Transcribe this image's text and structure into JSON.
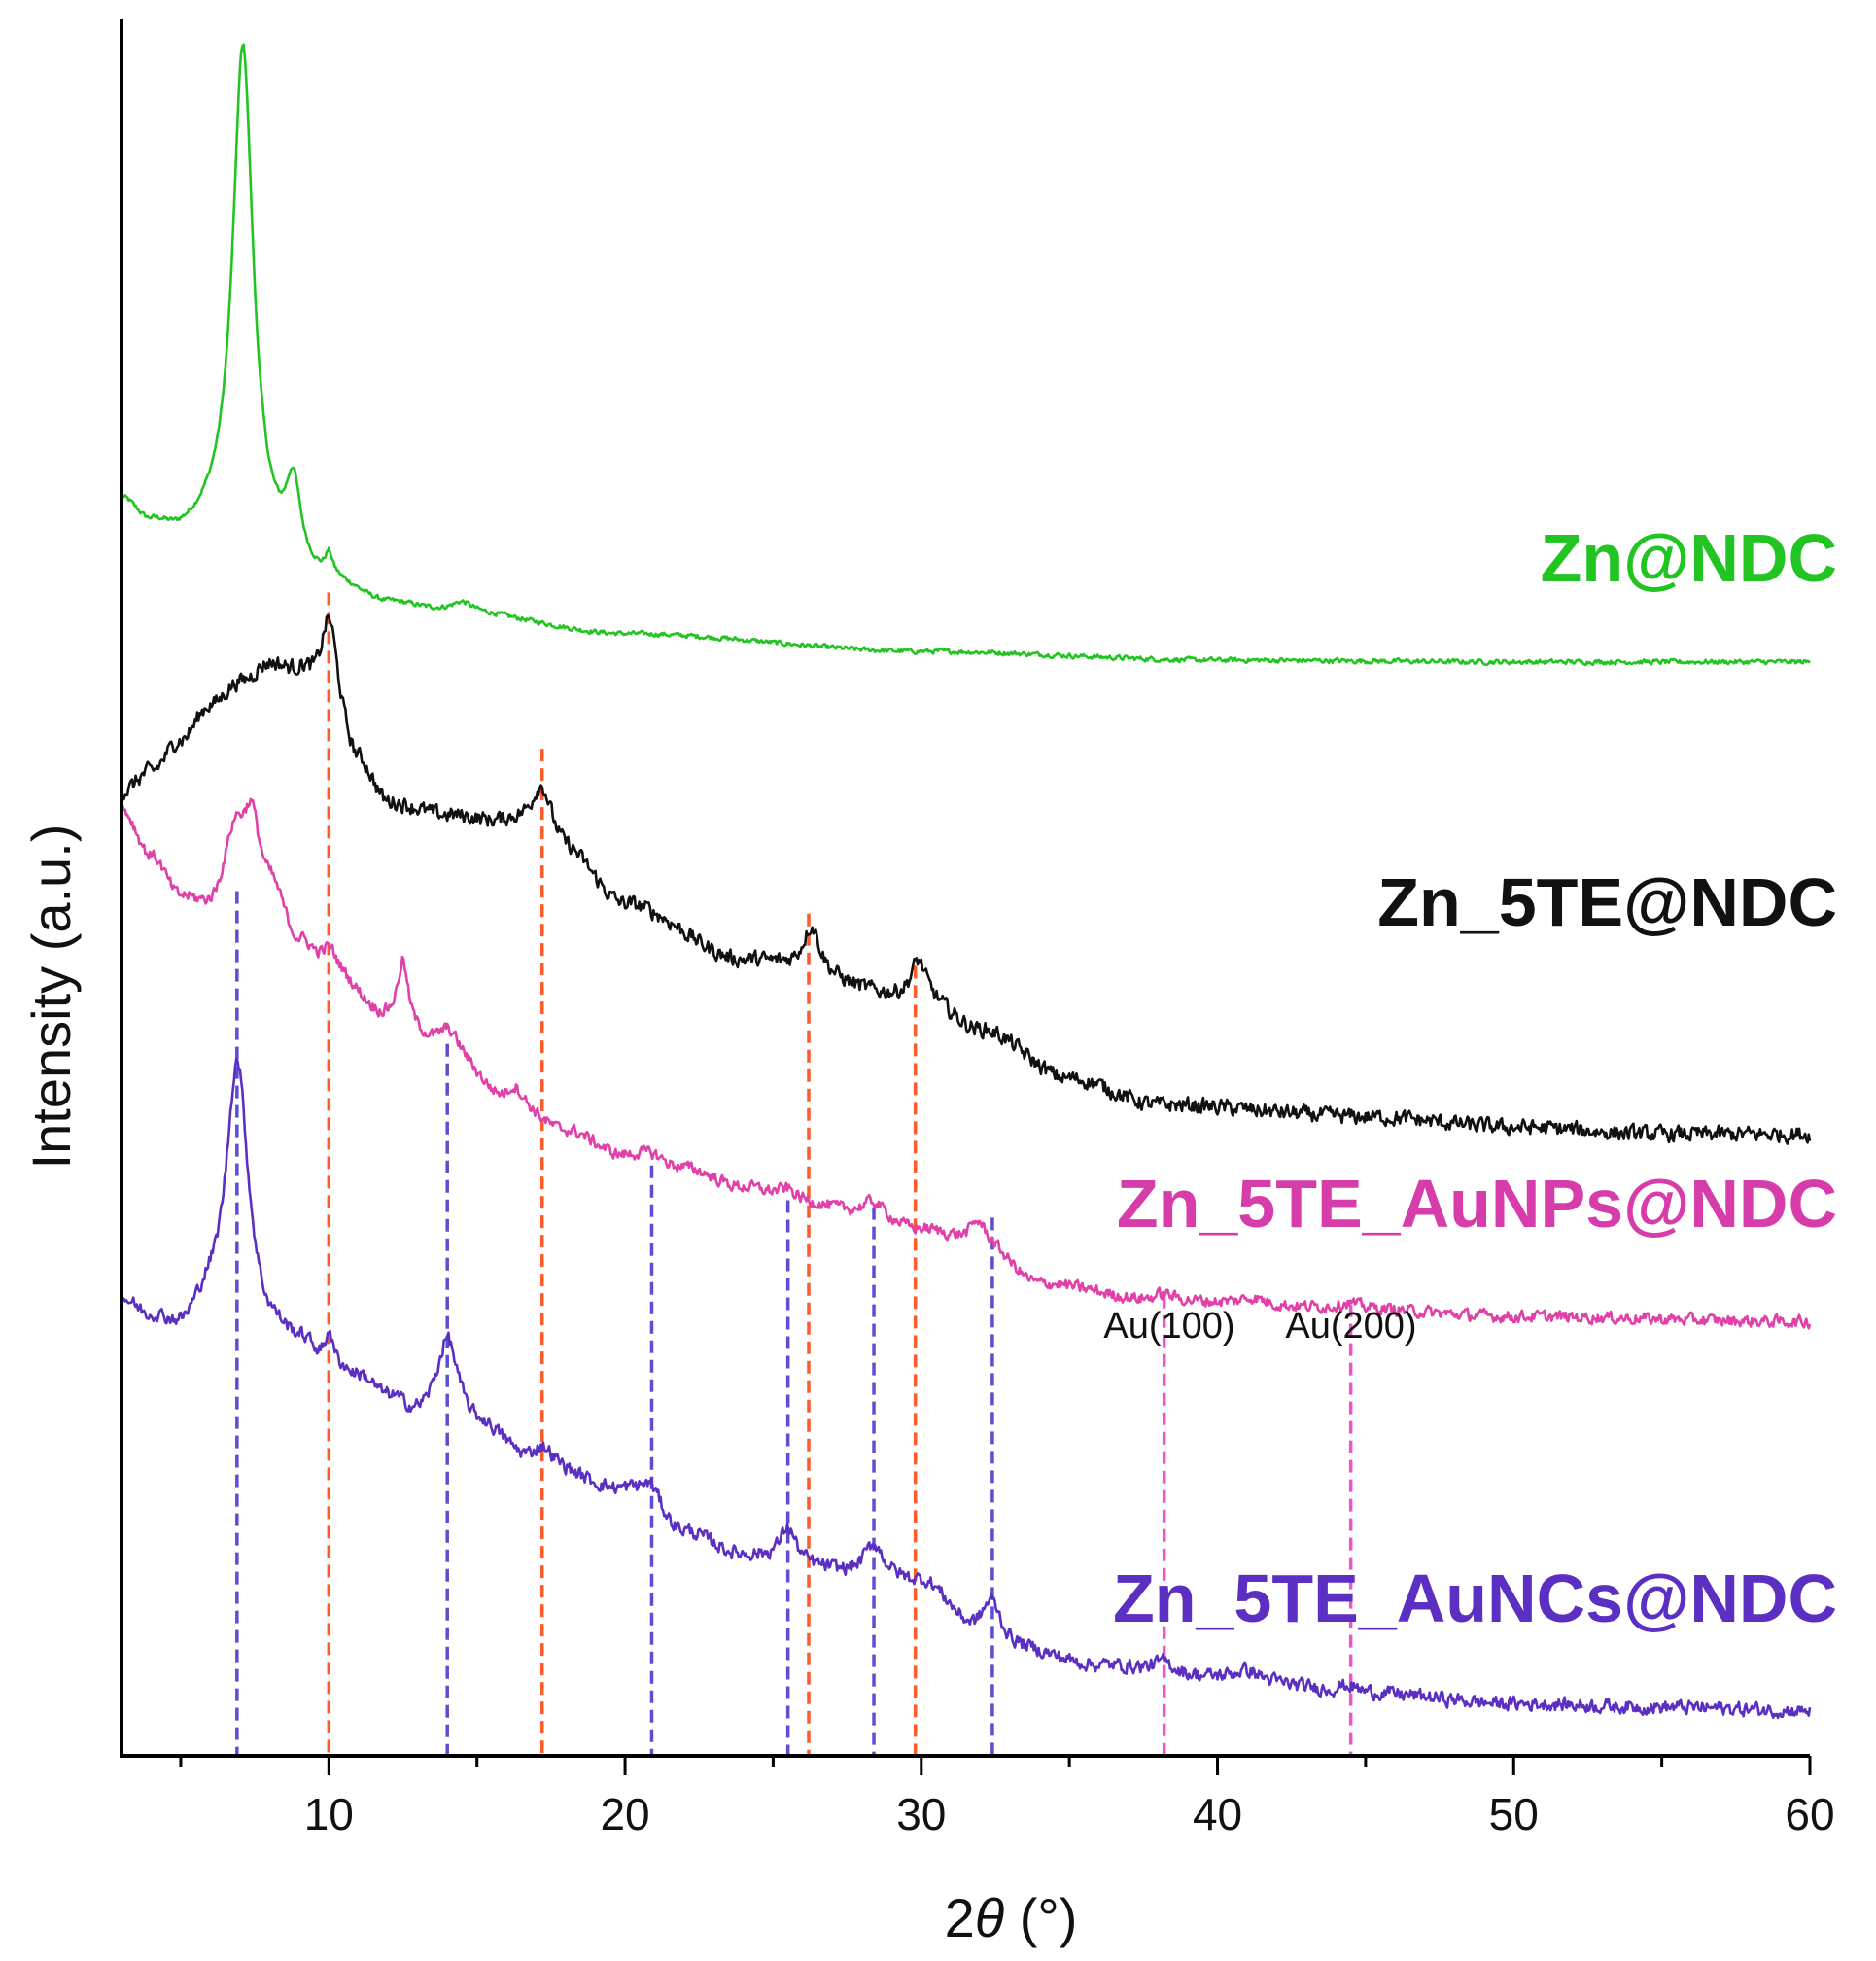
{
  "chart_data": {
    "type": "line",
    "xlabel_prefix": "2",
    "xlabel_symbol": "θ",
    "xlabel_suffix": " (°)",
    "ylabel": "Intensity (a.u.)",
    "xlim": [
      3,
      60
    ],
    "ylim": [
      0,
      1
    ],
    "x_ticks": [
      "10",
      "20",
      "30",
      "40",
      "50",
      "60"
    ],
    "x_tick_values": [
      10,
      20,
      30,
      40,
      50,
      60
    ],
    "series": [
      {
        "name": "Zn@NDC",
        "label": "Zn@NDC",
        "color": "#22c422",
        "baseline": [
          [
            3,
            0.722
          ],
          [
            4,
            0.708
          ],
          [
            5,
            0.702
          ],
          [
            6,
            0.705
          ],
          [
            10,
            0.674
          ],
          [
            12,
            0.663
          ],
          [
            14,
            0.659
          ],
          [
            20,
            0.646
          ],
          [
            30,
            0.636
          ],
          [
            40,
            0.631
          ],
          [
            50,
            0.63
          ],
          [
            60,
            0.63
          ]
        ],
        "peaks": [
          [
            7.1,
            0.285,
            0.42
          ],
          [
            8.8,
            0.045,
            0.3
          ],
          [
            10.0,
            0.012,
            0.15
          ],
          [
            14.5,
            0.005,
            0.4
          ]
        ],
        "noise": 0.0012
      },
      {
        "name": "Zn_5TE@NDC",
        "label": "Zn_5TE@NDC",
        "color": "#111111",
        "baseline": [
          [
            3,
            0.555
          ],
          [
            4,
            0.567
          ],
          [
            5,
            0.585
          ],
          [
            6,
            0.605
          ],
          [
            7,
            0.618
          ],
          [
            8,
            0.628
          ],
          [
            9,
            0.622
          ],
          [
            10,
            0.6
          ],
          [
            11,
            0.57
          ],
          [
            12,
            0.548
          ],
          [
            14,
            0.541
          ],
          [
            16,
            0.536
          ],
          [
            18,
            0.518
          ],
          [
            20,
            0.49
          ],
          [
            24,
            0.458
          ],
          [
            30,
            0.436
          ],
          [
            32,
            0.418
          ],
          [
            35,
            0.39
          ],
          [
            38,
            0.375
          ],
          [
            45,
            0.368
          ],
          [
            50,
            0.362
          ],
          [
            55,
            0.358
          ],
          [
            60,
            0.358
          ]
        ],
        "peaks": [
          [
            10.0,
            0.055,
            0.35
          ],
          [
            17.2,
            0.034,
            0.45
          ],
          [
            26.3,
            0.027,
            0.35
          ],
          [
            29.9,
            0.022,
            0.3
          ]
        ],
        "noise": 0.004
      },
      {
        "name": "Zn_5TE_AuNPs@NDC",
        "label": "Zn_5TE_AuNPs@NDC",
        "color": "#e040a8",
        "baseline": [
          [
            3,
            0.545
          ],
          [
            4,
            0.518
          ],
          [
            5,
            0.494
          ],
          [
            6,
            0.488
          ],
          [
            7,
            0.51
          ],
          [
            8,
            0.5
          ],
          [
            9,
            0.468
          ],
          [
            10,
            0.452
          ],
          [
            12,
            0.425
          ],
          [
            14,
            0.406
          ],
          [
            16,
            0.378
          ],
          [
            18,
            0.36
          ],
          [
            20,
            0.345
          ],
          [
            22,
            0.338
          ],
          [
            24,
            0.327
          ],
          [
            26,
            0.318
          ],
          [
            28,
            0.313
          ],
          [
            30,
            0.303
          ],
          [
            32,
            0.296
          ],
          [
            34,
            0.272
          ],
          [
            38,
            0.262
          ],
          [
            44,
            0.258
          ],
          [
            50,
            0.253
          ],
          [
            60,
            0.25
          ]
        ],
        "peaks": [
          [
            6.8,
            0.025,
            0.4
          ],
          [
            7.4,
            0.035,
            0.3
          ],
          [
            10.0,
            0.013,
            0.3
          ],
          [
            12.5,
            0.035,
            0.2
          ],
          [
            14.0,
            0.012,
            0.4
          ],
          [
            16.3,
            0.008,
            0.3
          ],
          [
            20.9,
            0.005,
            0.5
          ],
          [
            25.5,
            0.007,
            0.4
          ],
          [
            28.4,
            0.007,
            0.4
          ],
          [
            31.9,
            0.012,
            0.3
          ],
          [
            38.2,
            0.004,
            0.4
          ],
          [
            41.2,
            0.004,
            0.5
          ],
          [
            44.4,
            0.003,
            0.4
          ]
        ],
        "noise": 0.003
      },
      {
        "name": "Zn_5TE_AuNCs@NDC",
        "label": "Zn_5TE_AuNCs@NDC",
        "color": "#5b2fc2",
        "baseline": [
          [
            3,
            0.262
          ],
          [
            4,
            0.252
          ],
          [
            5,
            0.246
          ],
          [
            6,
            0.262
          ],
          [
            7,
            0.266
          ],
          [
            8,
            0.244
          ],
          [
            9,
            0.238
          ],
          [
            10,
            0.226
          ],
          [
            11,
            0.218
          ],
          [
            12,
            0.206
          ],
          [
            13,
            0.196
          ],
          [
            14,
            0.2
          ],
          [
            15,
            0.19
          ],
          [
            17,
            0.168
          ],
          [
            20,
            0.152
          ],
          [
            22,
            0.128
          ],
          [
            24,
            0.115
          ],
          [
            26,
            0.108
          ],
          [
            28,
            0.104
          ],
          [
            30,
            0.1
          ],
          [
            32,
            0.07
          ],
          [
            33,
            0.062
          ],
          [
            36,
            0.052
          ],
          [
            40,
            0.045
          ],
          [
            45,
            0.036
          ],
          [
            50,
            0.03
          ],
          [
            55,
            0.028
          ],
          [
            60,
            0.026
          ]
        ],
        "peaks": [
          [
            6.9,
            0.135,
            0.42
          ],
          [
            10.0,
            0.018,
            0.12
          ],
          [
            14.0,
            0.04,
            0.4
          ],
          [
            17.2,
            0.01,
            0.4
          ],
          [
            20.9,
            0.014,
            0.4
          ],
          [
            25.5,
            0.022,
            0.35
          ],
          [
            28.4,
            0.018,
            0.4
          ],
          [
            32.4,
            0.022,
            0.4
          ],
          [
            38.2,
            0.006,
            0.4
          ],
          [
            41.0,
            0.005,
            0.5
          ],
          [
            44.4,
            0.004,
            0.4
          ]
        ],
        "noise": 0.0035
      }
    ],
    "reference_lines": [
      {
        "x": 6.9,
        "y_top": 0.498,
        "color": "#5b4dd6"
      },
      {
        "x": 10.0,
        "y_top": 0.67,
        "color": "#ff5a2a"
      },
      {
        "x": 14.0,
        "y_top": 0.41,
        "color": "#5b4dd6"
      },
      {
        "x": 17.2,
        "y_top": 0.58,
        "color": "#ff5a2a"
      },
      {
        "x": 20.9,
        "y_top": 0.34,
        "color": "#5b4dd6"
      },
      {
        "x": 25.5,
        "y_top": 0.32,
        "color": "#5b4dd6"
      },
      {
        "x": 26.2,
        "y_top": 0.485,
        "color": "#ff5a2a"
      },
      {
        "x": 28.4,
        "y_top": 0.316,
        "color": "#5b4dd6"
      },
      {
        "x": 29.8,
        "y_top": 0.455,
        "color": "#ff5a2a"
      },
      {
        "x": 32.4,
        "y_top": 0.31,
        "color": "#5b4dd6"
      },
      {
        "x": 38.2,
        "y_top": 0.265,
        "color": "#ee55cc"
      },
      {
        "x": 44.5,
        "y_top": 0.26,
        "color": "#ee55cc"
      }
    ],
    "annotations": [
      {
        "text": "Au(100)",
        "x": 38.2
      },
      {
        "text": "Au(200)",
        "x": 44.5
      }
    ]
  }
}
